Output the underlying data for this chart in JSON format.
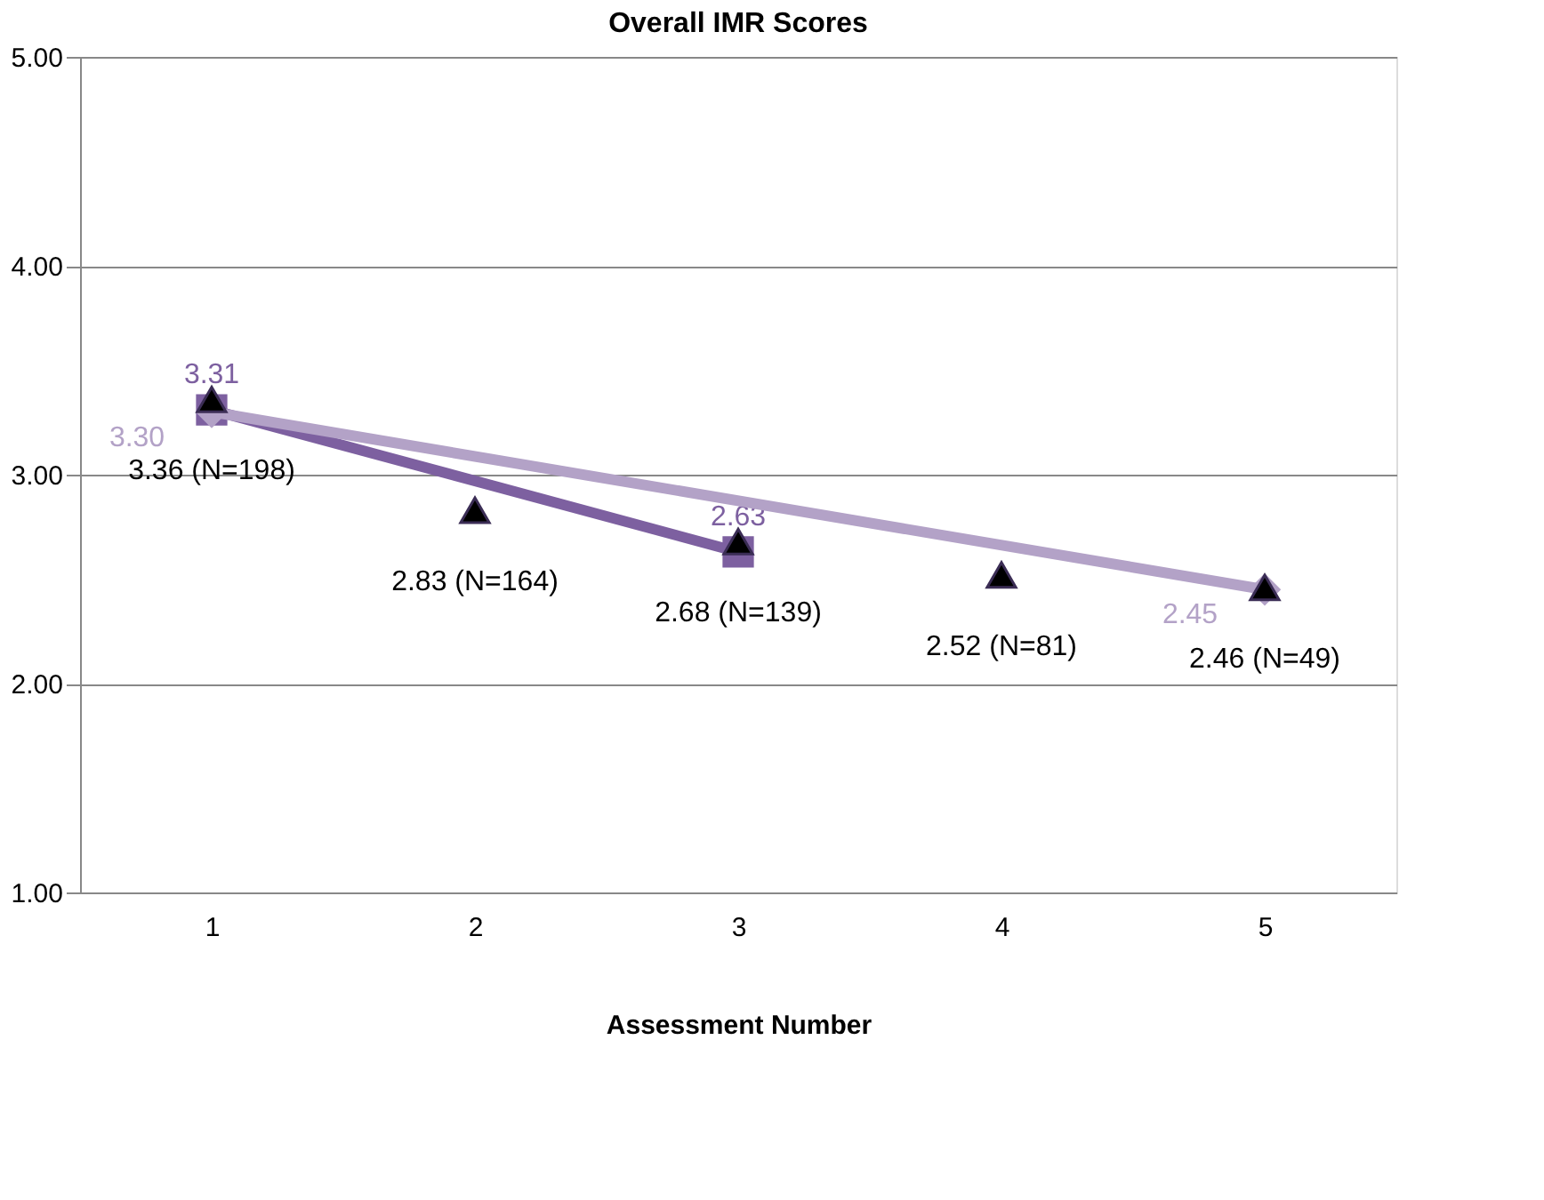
{
  "chart_data": {
    "type": "line",
    "title": "Overall IMR Scores",
    "xlabel": "Assessment Number",
    "xlim": [
      0.5,
      5.5
    ],
    "xticks": [
      {
        "value": 1,
        "label": "1"
      },
      {
        "value": 2,
        "label": "2"
      },
      {
        "value": 3,
        "label": "3"
      },
      {
        "value": 4,
        "label": "4"
      },
      {
        "value": 5,
        "label": "5"
      }
    ],
    "ylim": [
      1,
      5
    ],
    "yticks": [
      {
        "value": 1,
        "label": "1.00"
      },
      {
        "value": 2,
        "label": "2.00"
      },
      {
        "value": 3,
        "label": "3.00"
      },
      {
        "value": 4,
        "label": "4.00"
      },
      {
        "value": 5,
        "label": "5.00"
      }
    ],
    "grid": "y",
    "legend": false,
    "series": [
      {
        "color": "#7d60a0",
        "marker": "square",
        "x": [
          1,
          3
        ],
        "values": [
          3.31,
          2.63
        ],
        "value_labels": [
          "3.31",
          "2.63"
        ]
      },
      {
        "color": "#b3a2c7",
        "marker": "diamond",
        "x": [
          1,
          5
        ],
        "values": [
          3.3,
          2.45
        ],
        "value_labels": [
          "3.30",
          "2.45"
        ]
      },
      {
        "type": "scatter",
        "color": "#000000",
        "marker": "triangle",
        "x": [
          1,
          2,
          3,
          4,
          5
        ],
        "values": [
          3.36,
          2.83,
          2.68,
          2.52,
          2.46
        ],
        "value_labels": [
          "3.36 (N=198)",
          "2.83 (N=164)",
          "2.68 (N=139)",
          "2.52 (N=81)",
          "2.46 (N=49)"
        ]
      }
    ]
  }
}
